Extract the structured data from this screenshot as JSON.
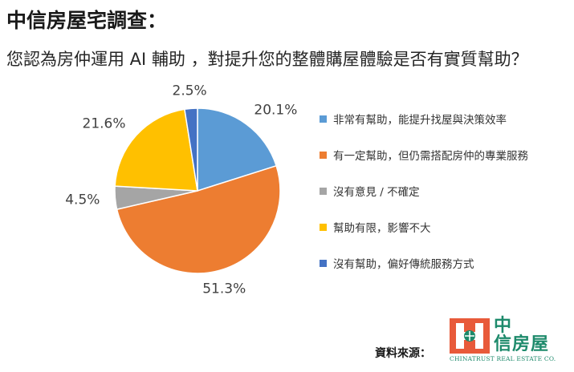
{
  "header": {
    "title": "中信房屋宅調查：",
    "question": "您認為房仲運用 AI 輔助 ，對提升您的整體購屋體驗是否有實質幫助？"
  },
  "chart_data": {
    "type": "pie",
    "start_angle_deg": 90,
    "direction": "clockwise",
    "legend_position": "right",
    "slices": [
      {
        "label": "非常有幫助，能提升找屋與決策效率",
        "value": 20.1,
        "display": "20.1%",
        "color": "#5b9bd5"
      },
      {
        "label": "有一定幫助，但仍需搭配房仲的專業服務",
        "value": 51.3,
        "display": "51.3%",
        "color": "#ed7d31"
      },
      {
        "label": "沒有意見 / 不確定",
        "value": 4.5,
        "display": "4.5%",
        "color": "#a5a5a5"
      },
      {
        "label": "幫助有限，影響不大",
        "value": 21.6,
        "display": "21.6%",
        "color": "#ffc000"
      },
      {
        "label": "沒有幫助，偏好傳統服務方式",
        "value": 2.5,
        "display": "2.5%",
        "color": "#4472c4"
      }
    ]
  },
  "footer": {
    "source_label": "資料來源：",
    "logo_name_line1": "中",
    "logo_name_line2": "信房屋",
    "logo_english": "CHINATRUST REAL ESTATE CO."
  }
}
